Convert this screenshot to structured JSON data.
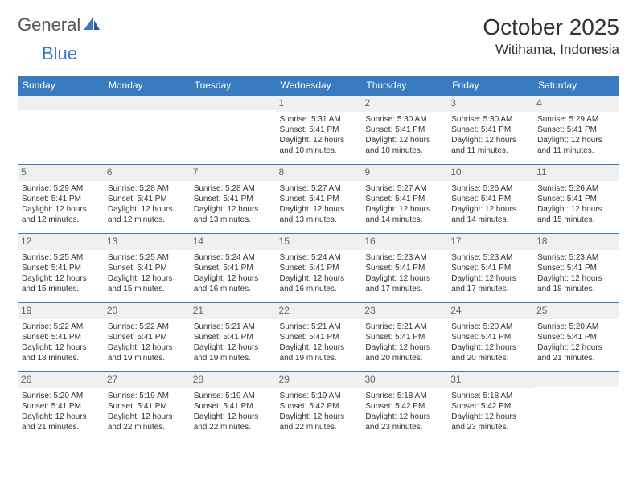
{
  "brand": {
    "word1": "General",
    "word2": "Blue",
    "logo_color": "#3a7bbf",
    "text_color": "#555555"
  },
  "title": "October 2025",
  "location": "Witihama, Indonesia",
  "header_bg": "#3a7bbf",
  "header_text_color": "#ffffff",
  "border_color": "#3a7bbf",
  "daynum_bg": "#eef0f2",
  "weekdays": [
    "Sunday",
    "Monday",
    "Tuesday",
    "Wednesday",
    "Thursday",
    "Friday",
    "Saturday"
  ],
  "weeks": [
    [
      {
        "num": "",
        "lines": []
      },
      {
        "num": "",
        "lines": []
      },
      {
        "num": "",
        "lines": []
      },
      {
        "num": "1",
        "lines": [
          "Sunrise: 5:31 AM",
          "Sunset: 5:41 PM",
          "Daylight: 12 hours and 10 minutes."
        ]
      },
      {
        "num": "2",
        "lines": [
          "Sunrise: 5:30 AM",
          "Sunset: 5:41 PM",
          "Daylight: 12 hours and 10 minutes."
        ]
      },
      {
        "num": "3",
        "lines": [
          "Sunrise: 5:30 AM",
          "Sunset: 5:41 PM",
          "Daylight: 12 hours and 11 minutes."
        ]
      },
      {
        "num": "4",
        "lines": [
          "Sunrise: 5:29 AM",
          "Sunset: 5:41 PM",
          "Daylight: 12 hours and 11 minutes."
        ]
      }
    ],
    [
      {
        "num": "5",
        "lines": [
          "Sunrise: 5:29 AM",
          "Sunset: 5:41 PM",
          "Daylight: 12 hours and 12 minutes."
        ]
      },
      {
        "num": "6",
        "lines": [
          "Sunrise: 5:28 AM",
          "Sunset: 5:41 PM",
          "Daylight: 12 hours and 12 minutes."
        ]
      },
      {
        "num": "7",
        "lines": [
          "Sunrise: 5:28 AM",
          "Sunset: 5:41 PM",
          "Daylight: 12 hours and 13 minutes."
        ]
      },
      {
        "num": "8",
        "lines": [
          "Sunrise: 5:27 AM",
          "Sunset: 5:41 PM",
          "Daylight: 12 hours and 13 minutes."
        ]
      },
      {
        "num": "9",
        "lines": [
          "Sunrise: 5:27 AM",
          "Sunset: 5:41 PM",
          "Daylight: 12 hours and 14 minutes."
        ]
      },
      {
        "num": "10",
        "lines": [
          "Sunrise: 5:26 AM",
          "Sunset: 5:41 PM",
          "Daylight: 12 hours and 14 minutes."
        ]
      },
      {
        "num": "11",
        "lines": [
          "Sunrise: 5:26 AM",
          "Sunset: 5:41 PM",
          "Daylight: 12 hours and 15 minutes."
        ]
      }
    ],
    [
      {
        "num": "12",
        "lines": [
          "Sunrise: 5:25 AM",
          "Sunset: 5:41 PM",
          "Daylight: 12 hours and 15 minutes."
        ]
      },
      {
        "num": "13",
        "lines": [
          "Sunrise: 5:25 AM",
          "Sunset: 5:41 PM",
          "Daylight: 12 hours and 15 minutes."
        ]
      },
      {
        "num": "14",
        "lines": [
          "Sunrise: 5:24 AM",
          "Sunset: 5:41 PM",
          "Daylight: 12 hours and 16 minutes."
        ]
      },
      {
        "num": "15",
        "lines": [
          "Sunrise: 5:24 AM",
          "Sunset: 5:41 PM",
          "Daylight: 12 hours and 16 minutes."
        ]
      },
      {
        "num": "16",
        "lines": [
          "Sunrise: 5:23 AM",
          "Sunset: 5:41 PM",
          "Daylight: 12 hours and 17 minutes."
        ]
      },
      {
        "num": "17",
        "lines": [
          "Sunrise: 5:23 AM",
          "Sunset: 5:41 PM",
          "Daylight: 12 hours and 17 minutes."
        ]
      },
      {
        "num": "18",
        "lines": [
          "Sunrise: 5:23 AM",
          "Sunset: 5:41 PM",
          "Daylight: 12 hours and 18 minutes."
        ]
      }
    ],
    [
      {
        "num": "19",
        "lines": [
          "Sunrise: 5:22 AM",
          "Sunset: 5:41 PM",
          "Daylight: 12 hours and 18 minutes."
        ]
      },
      {
        "num": "20",
        "lines": [
          "Sunrise: 5:22 AM",
          "Sunset: 5:41 PM",
          "Daylight: 12 hours and 19 minutes."
        ]
      },
      {
        "num": "21",
        "lines": [
          "Sunrise: 5:21 AM",
          "Sunset: 5:41 PM",
          "Daylight: 12 hours and 19 minutes."
        ]
      },
      {
        "num": "22",
        "lines": [
          "Sunrise: 5:21 AM",
          "Sunset: 5:41 PM",
          "Daylight: 12 hours and 19 minutes."
        ]
      },
      {
        "num": "23",
        "lines": [
          "Sunrise: 5:21 AM",
          "Sunset: 5:41 PM",
          "Daylight: 12 hours and 20 minutes."
        ]
      },
      {
        "num": "24",
        "lines": [
          "Sunrise: 5:20 AM",
          "Sunset: 5:41 PM",
          "Daylight: 12 hours and 20 minutes."
        ]
      },
      {
        "num": "25",
        "lines": [
          "Sunrise: 5:20 AM",
          "Sunset: 5:41 PM",
          "Daylight: 12 hours and 21 minutes."
        ]
      }
    ],
    [
      {
        "num": "26",
        "lines": [
          "Sunrise: 5:20 AM",
          "Sunset: 5:41 PM",
          "Daylight: 12 hours and 21 minutes."
        ]
      },
      {
        "num": "27",
        "lines": [
          "Sunrise: 5:19 AM",
          "Sunset: 5:41 PM",
          "Daylight: 12 hours and 22 minutes."
        ]
      },
      {
        "num": "28",
        "lines": [
          "Sunrise: 5:19 AM",
          "Sunset: 5:41 PM",
          "Daylight: 12 hours and 22 minutes."
        ]
      },
      {
        "num": "29",
        "lines": [
          "Sunrise: 5:19 AM",
          "Sunset: 5:42 PM",
          "Daylight: 12 hours and 22 minutes."
        ]
      },
      {
        "num": "30",
        "lines": [
          "Sunrise: 5:18 AM",
          "Sunset: 5:42 PM",
          "Daylight: 12 hours and 23 minutes."
        ]
      },
      {
        "num": "31",
        "lines": [
          "Sunrise: 5:18 AM",
          "Sunset: 5:42 PM",
          "Daylight: 12 hours and 23 minutes."
        ]
      },
      {
        "num": "",
        "lines": []
      }
    ]
  ]
}
